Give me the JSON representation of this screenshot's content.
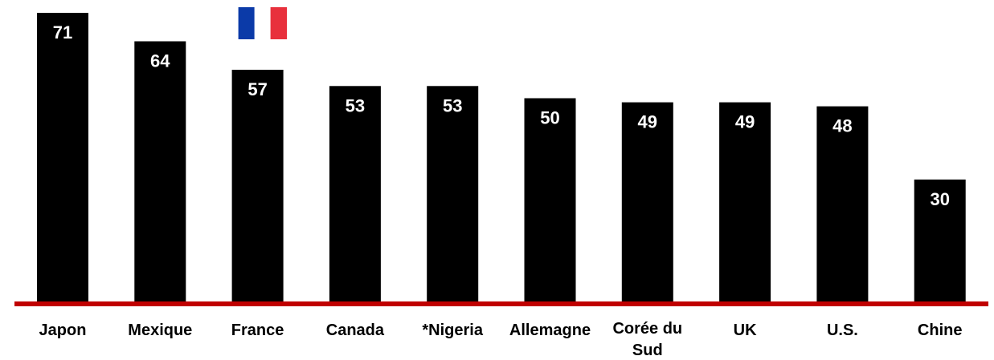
{
  "chart_data": {
    "type": "bar",
    "categories": [
      "Japon",
      "Mexique",
      "France",
      "Canada",
      "*Nigeria",
      "Allemagne",
      "Corée du Sud",
      "UK",
      "U.S.",
      "Chine"
    ],
    "values": [
      71,
      64,
      57,
      53,
      53,
      50,
      49,
      49,
      48,
      30
    ],
    "bar_color": "#000000",
    "value_label_color": "#ffffff",
    "baseline_color": "#c00000",
    "highlight": {
      "category": "France",
      "marker": "french-flag-icon",
      "colors": [
        "#0b3aa8",
        "#ffffff",
        "#e8303c"
      ]
    },
    "title": "",
    "xlabel": "",
    "ylabel": "",
    "ylim": [
      0,
      75
    ],
    "grid": false
  }
}
